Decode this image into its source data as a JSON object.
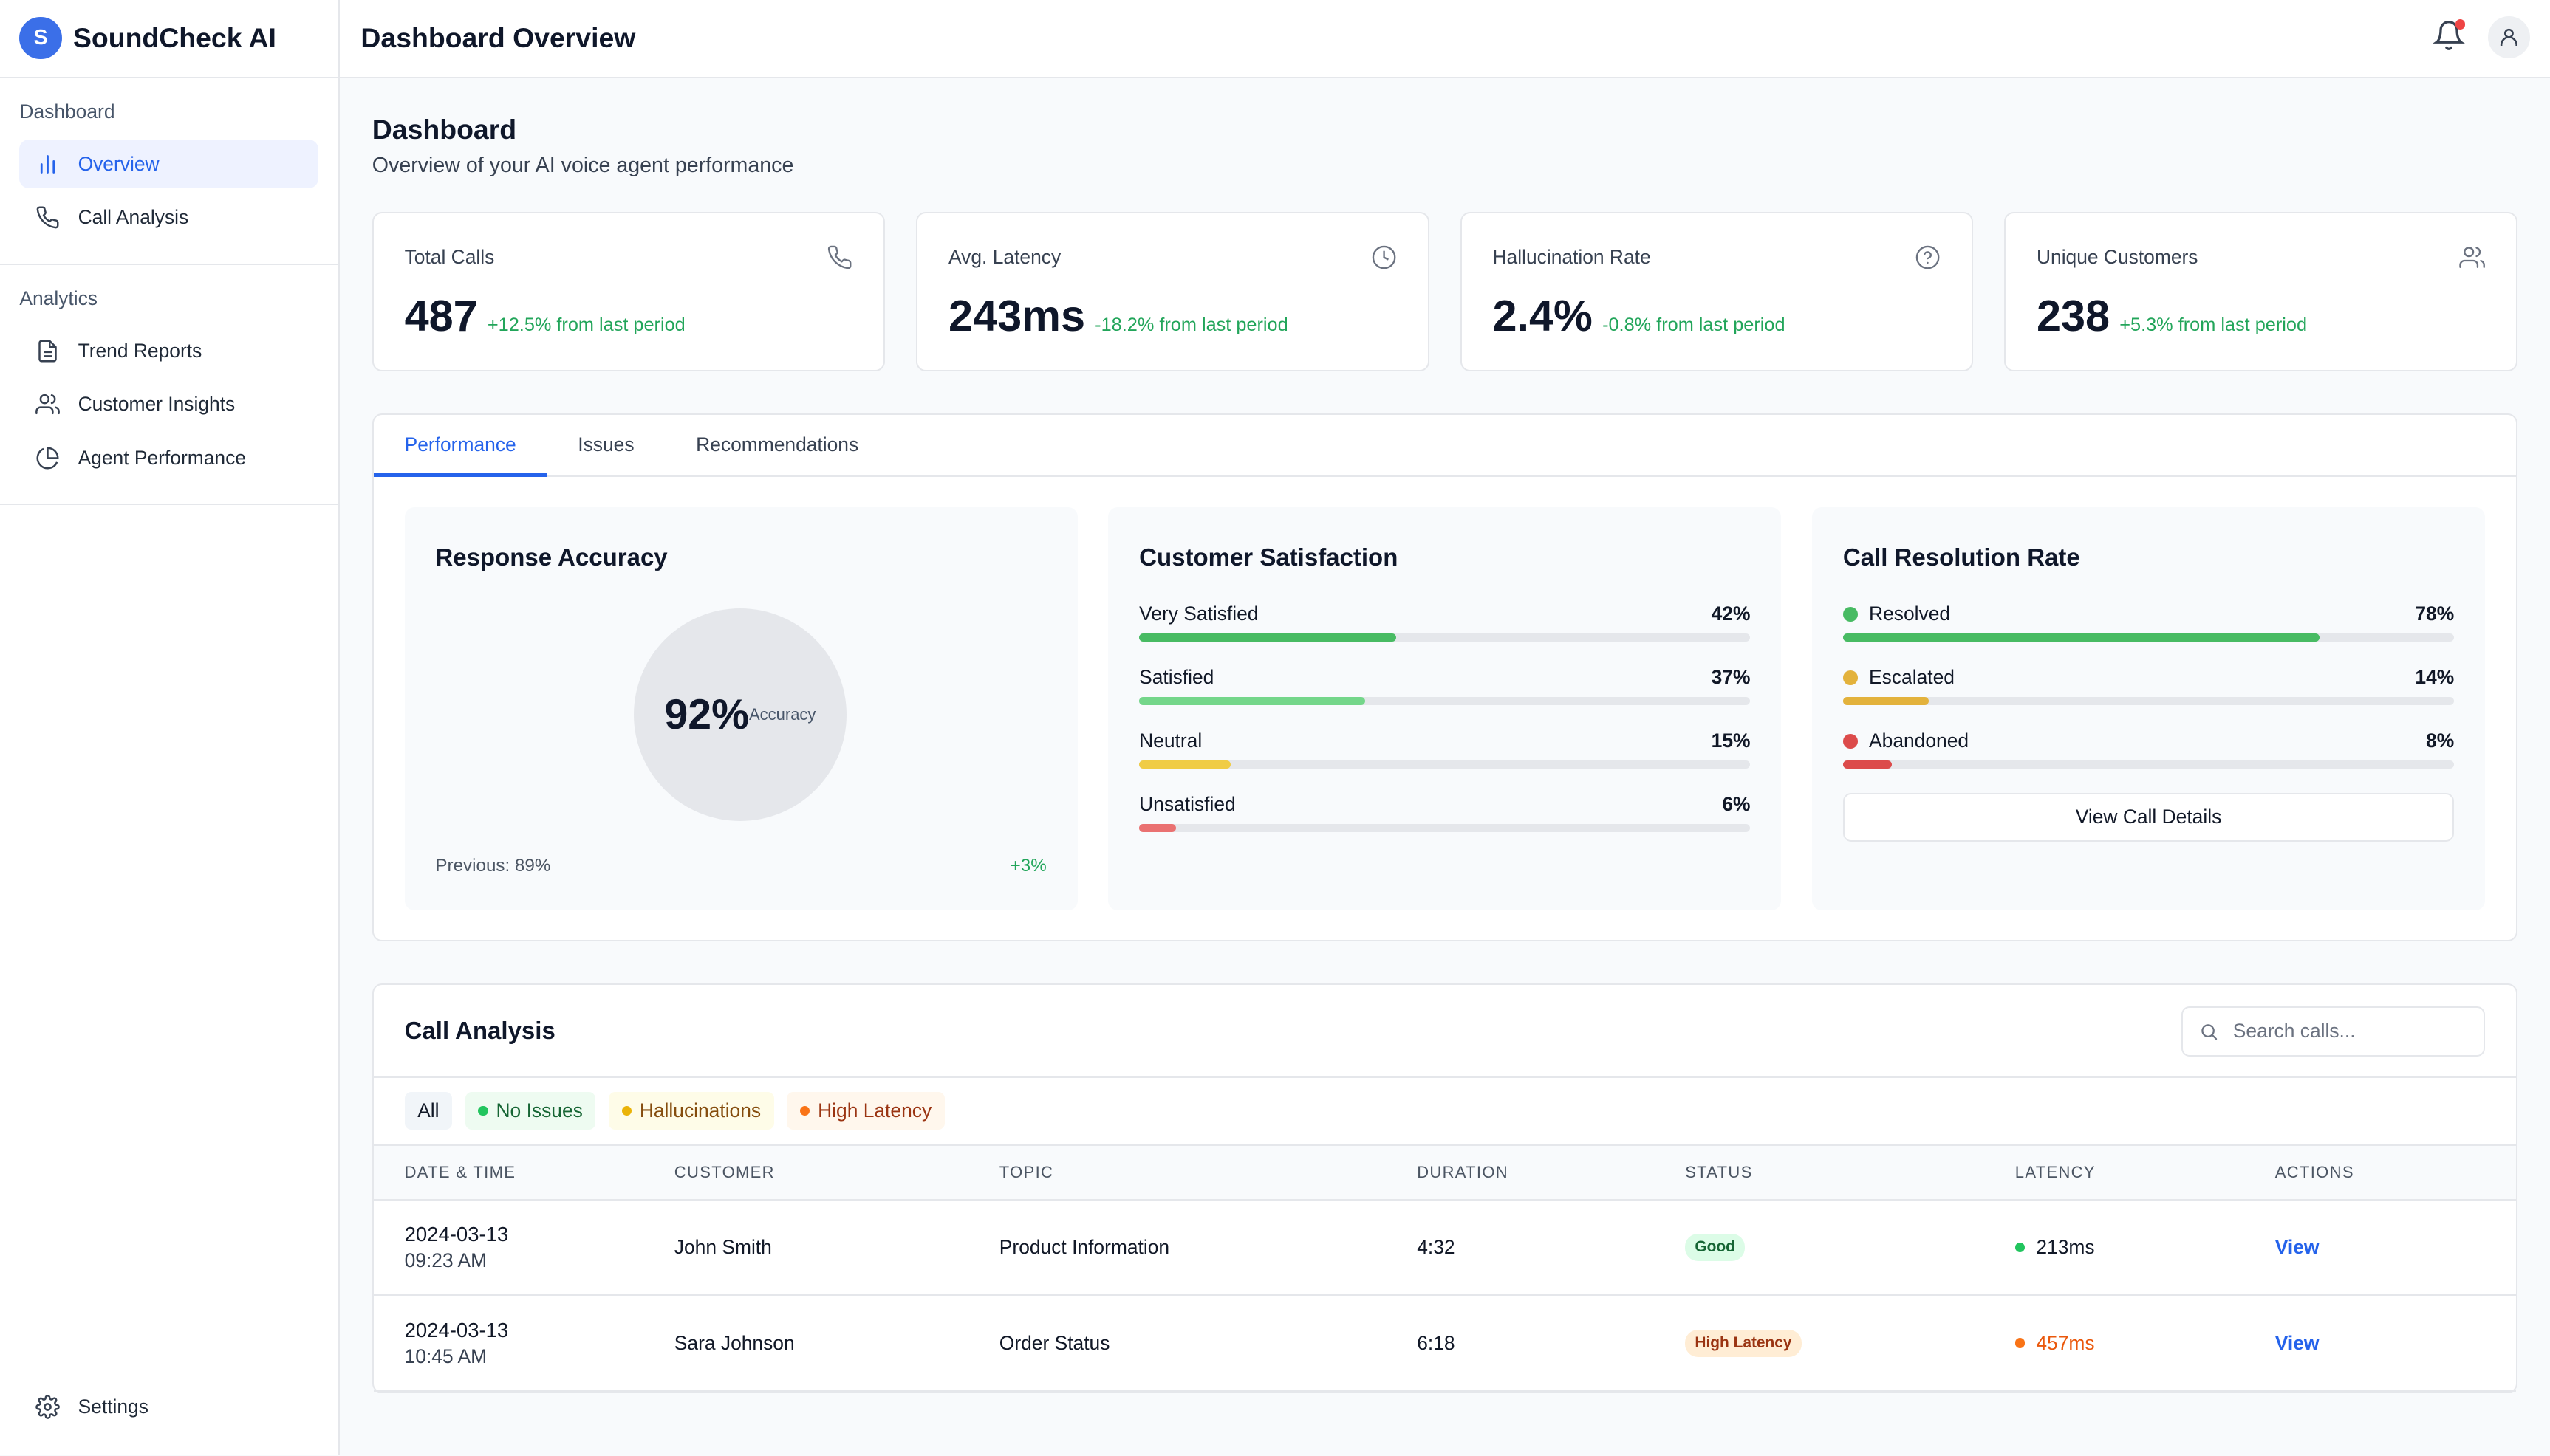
{
  "brand": {
    "logo_letter": "S",
    "name": "SoundCheck AI"
  },
  "sidebar": {
    "sections": [
      {
        "heading": "Dashboard",
        "items": [
          {
            "label": "Overview",
            "icon": "bar-chart-icon",
            "active": true
          },
          {
            "label": "Call Analysis",
            "icon": "phone-icon"
          }
        ]
      },
      {
        "heading": "Analytics",
        "items": [
          {
            "label": "Trend Reports",
            "icon": "document-icon"
          },
          {
            "label": "Customer Insights",
            "icon": "users-icon"
          },
          {
            "label": "Agent Performance",
            "icon": "pie-chart-icon"
          }
        ]
      }
    ],
    "settings_label": "Settings"
  },
  "header": {
    "title": "Dashboard Overview",
    "notification_dot": true
  },
  "page": {
    "title": "Dashboard",
    "subtitle": "Overview of your AI voice agent performance"
  },
  "stats": [
    {
      "label": "Total Calls",
      "value": "487",
      "change": "+12.5% from last period",
      "icon": "phone-icon"
    },
    {
      "label": "Avg. Latency",
      "value": "243ms",
      "change": "-18.2% from last period",
      "icon": "clock-icon"
    },
    {
      "label": "Hallucination Rate",
      "value": "2.4%",
      "change": "-0.8% from last period",
      "icon": "help-circle-icon"
    },
    {
      "label": "Unique Customers",
      "value": "238",
      "change": "+5.3% from last period",
      "icon": "users-icon"
    }
  ],
  "tabs": [
    {
      "label": "Performance",
      "active": true
    },
    {
      "label": "Issues"
    },
    {
      "label": "Recommendations"
    }
  ],
  "accuracy": {
    "title": "Response Accuracy",
    "value": "92%",
    "label": "Accuracy",
    "previous": "Previous: 89%",
    "delta": "+3%"
  },
  "satisfaction": {
    "title": "Customer Satisfaction",
    "rows": [
      {
        "label": "Very Satisfied",
        "pct": "42%",
        "value": 42,
        "color": "#48bb63"
      },
      {
        "label": "Satisfied",
        "pct": "37%",
        "value": 37,
        "color": "#74d68a"
      },
      {
        "label": "Neutral",
        "pct": "15%",
        "value": 15,
        "color": "#f0cc45"
      },
      {
        "label": "Unsatisfied",
        "pct": "6%",
        "value": 6,
        "color": "#ea7171"
      }
    ]
  },
  "resolution": {
    "title": "Call Resolution Rate",
    "rows": [
      {
        "label": "Resolved",
        "pct": "78%",
        "value": 78,
        "color": "#48bb63"
      },
      {
        "label": "Escalated",
        "pct": "14%",
        "value": 14,
        "color": "#e3b23c"
      },
      {
        "label": "Abandoned",
        "pct": "8%",
        "value": 8,
        "color": "#dc4b4b"
      }
    ],
    "button_label": "View Call Details"
  },
  "calls": {
    "title": "Call Analysis",
    "search_placeholder": "Search calls...",
    "filters": [
      {
        "label": "All",
        "bg": "#f1f5f9",
        "fg": "#111827"
      },
      {
        "label": "No Issues",
        "bg": "#eefbf1",
        "fg": "#166534",
        "dot": "#22c55e"
      },
      {
        "label": "Hallucinations",
        "bg": "#fefce8",
        "fg": "#854d0e",
        "dot": "#eab308"
      },
      {
        "label": "High Latency",
        "bg": "#fff7ed",
        "fg": "#9a3412",
        "dot": "#f97316"
      }
    ],
    "columns": [
      "DATE & TIME",
      "CUSTOMER",
      "TOPIC",
      "DURATION",
      "STATUS",
      "LATENCY",
      "ACTIONS"
    ],
    "rows": [
      {
        "date": "2024-03-13",
        "time": "09:23 AM",
        "customer": "John Smith",
        "topic": "Product Information",
        "duration": "4:32",
        "status": "Good",
        "status_bg": "#dcfce7",
        "status_fg": "#166534",
        "latency": "213ms",
        "latency_color": "#22c55e",
        "latency_text": "#111827",
        "action": "View"
      },
      {
        "date": "2024-03-13",
        "time": "10:45 AM",
        "customer": "Sara Johnson",
        "topic": "Order Status",
        "duration": "6:18",
        "status": "High Latency",
        "status_bg": "#ffedd5",
        "status_fg": "#9a3412",
        "latency": "457ms",
        "latency_color": "#f97316",
        "latency_text": "#ea580c",
        "action": "View"
      }
    ]
  }
}
